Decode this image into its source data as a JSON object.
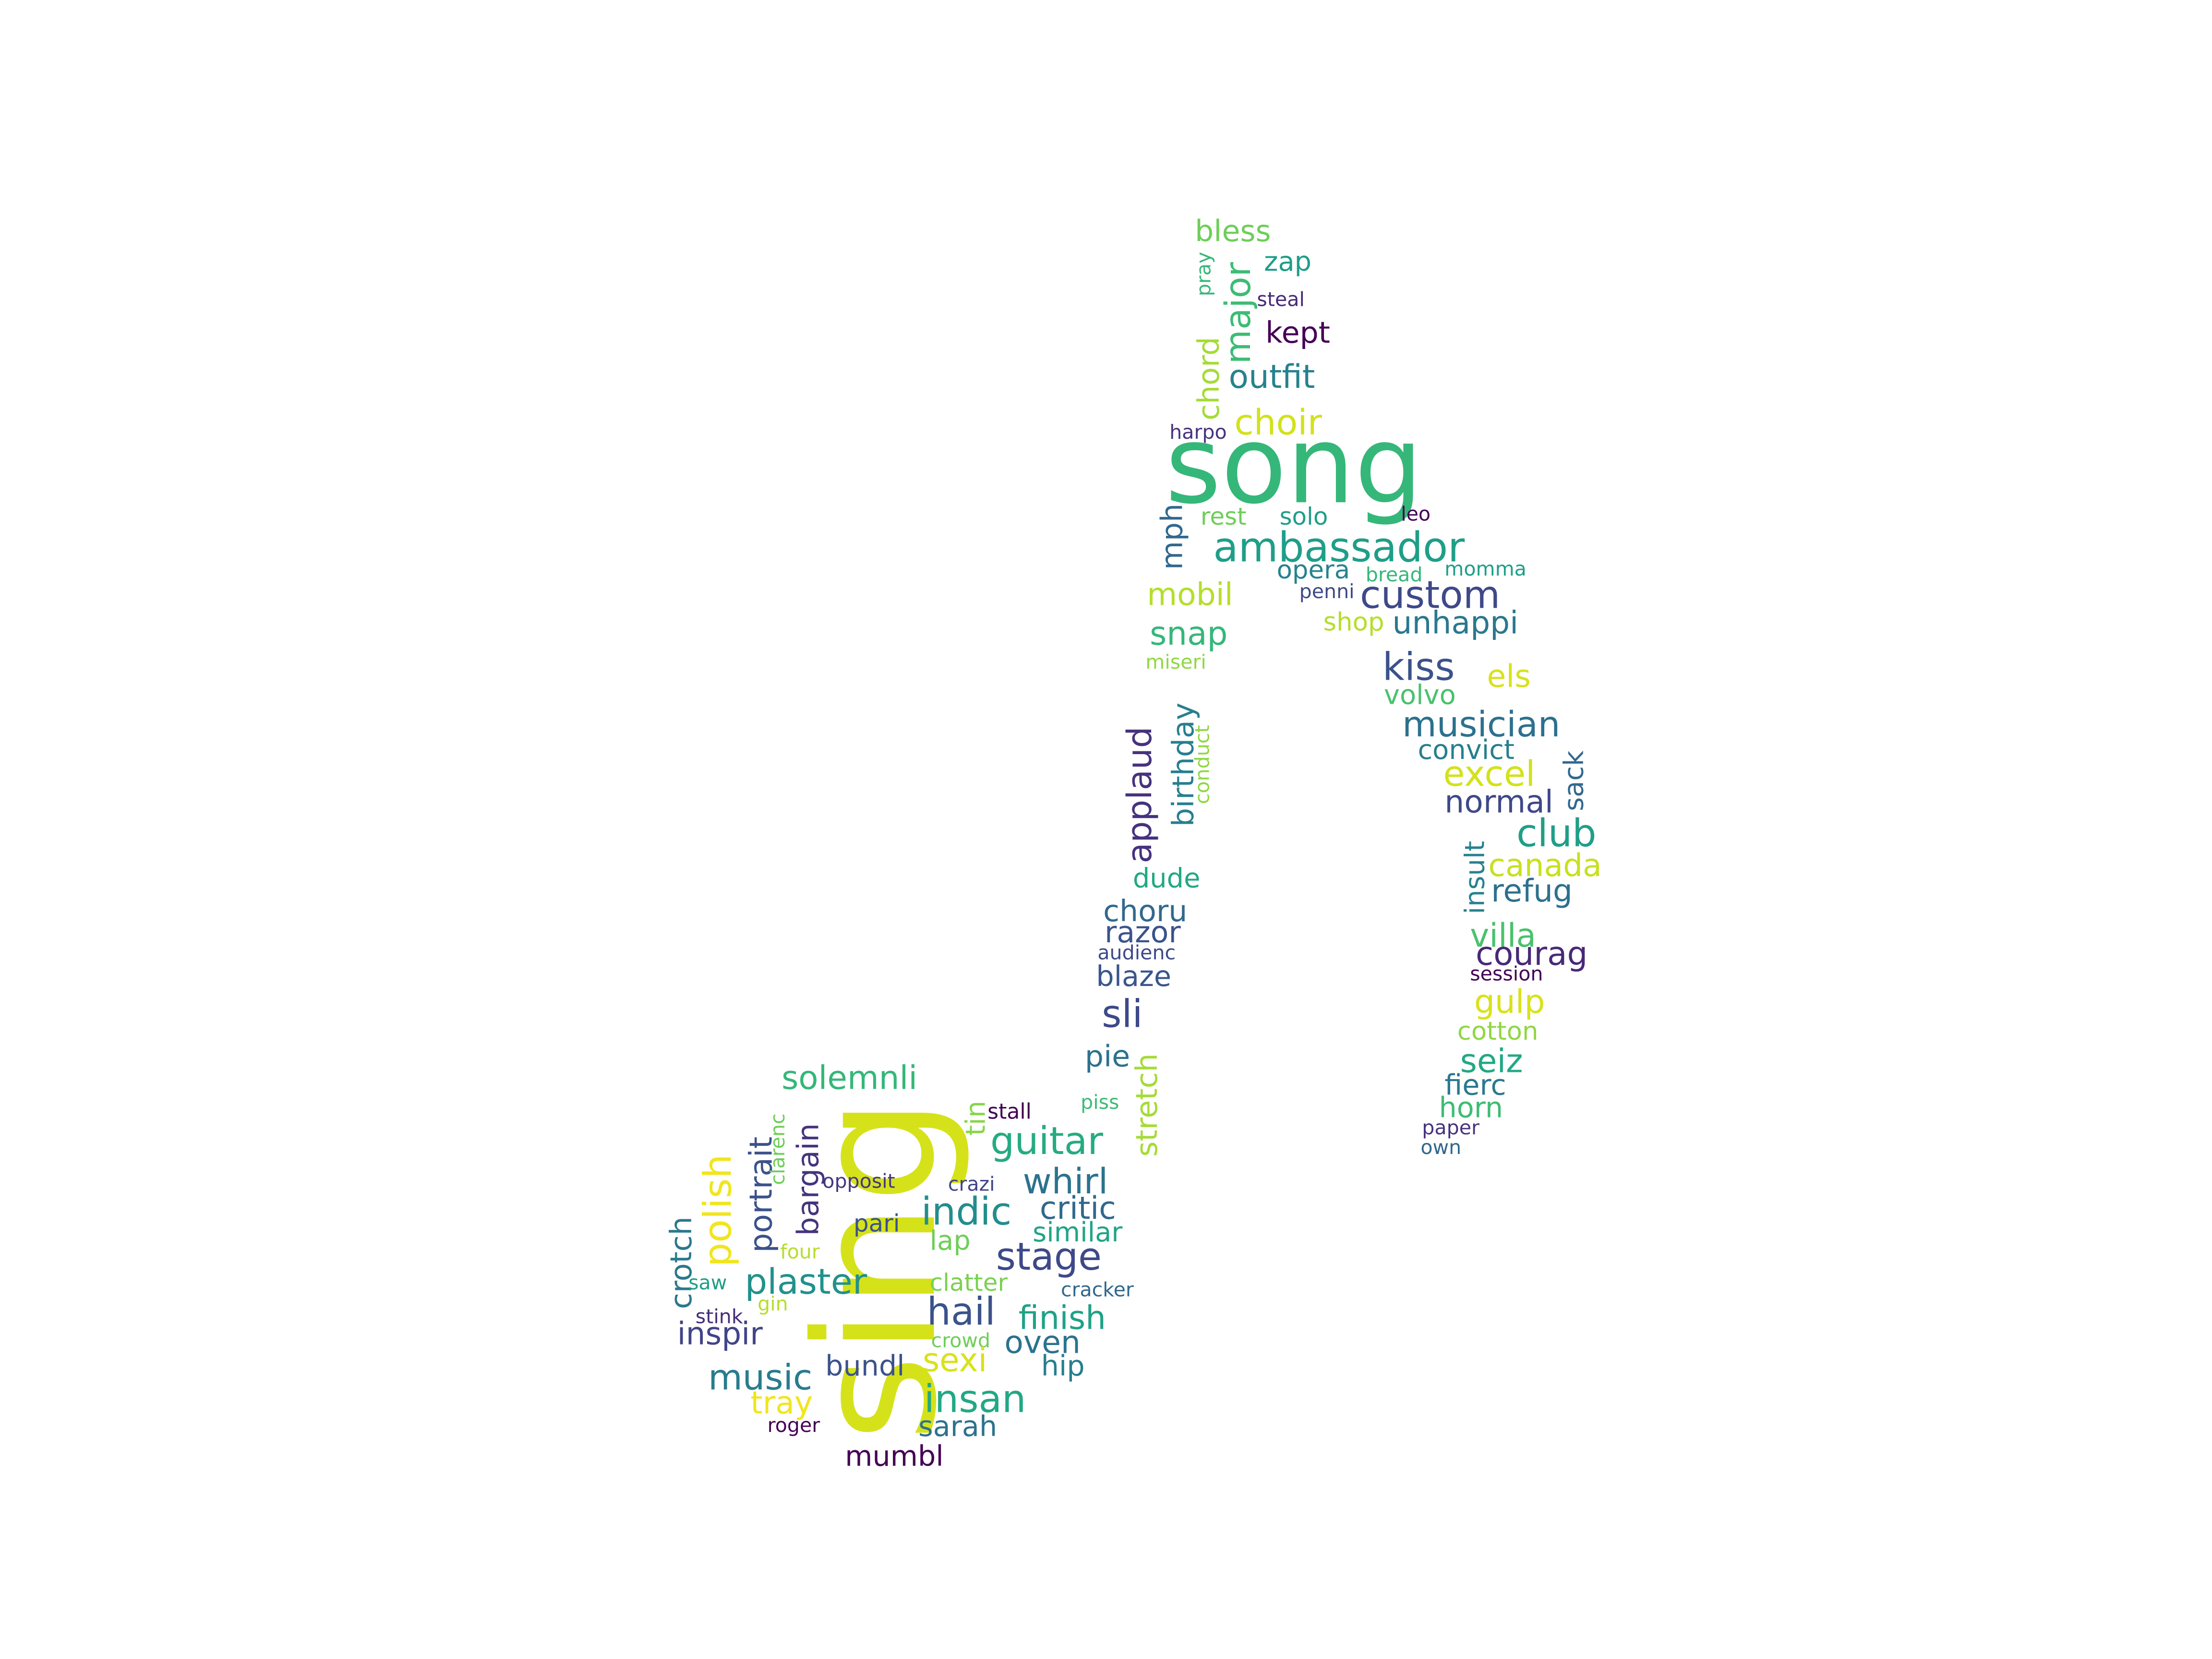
{
  "words": [
    {
      "text": "song",
      "color": "#35b779"
    },
    {
      "text": "sing",
      "color": "#d5e21a"
    },
    {
      "text": "ambassador",
      "color": "#1f9e89"
    },
    {
      "text": "custom",
      "color": "#3e4989"
    },
    {
      "text": "bless",
      "color": "#6ece58"
    },
    {
      "text": "zap",
      "color": "#1f9e89"
    },
    {
      "text": "pray",
      "color": "#35b779"
    },
    {
      "text": "major",
      "color": "#3dbc74"
    },
    {
      "text": "steal",
      "color": "#482878"
    },
    {
      "text": "kept",
      "color": "#440154"
    },
    {
      "text": "chord",
      "color": "#a5db36"
    },
    {
      "text": "outfit",
      "color": "#26828e"
    },
    {
      "text": "choir",
      "color": "#d2e21b"
    },
    {
      "text": "harpo",
      "color": "#46337e"
    },
    {
      "text": "rest",
      "color": "#6ece58"
    },
    {
      "text": "solo",
      "color": "#1f9e89"
    },
    {
      "text": "leo",
      "color": "#440154"
    },
    {
      "text": "mph",
      "color": "#31688e"
    },
    {
      "text": "opera",
      "color": "#26828e"
    },
    {
      "text": "bread",
      "color": "#35b779"
    },
    {
      "text": "momma",
      "color": "#1f9e89"
    },
    {
      "text": "penni",
      "color": "#3e4989"
    },
    {
      "text": "mobil",
      "color": "#b5de2b"
    },
    {
      "text": "snap",
      "color": "#35b779"
    },
    {
      "text": "shop",
      "color": "#b5de2b"
    },
    {
      "text": "unhappi",
      "color": "#2a788e"
    },
    {
      "text": "miseri",
      "color": "#90d743"
    },
    {
      "text": "kiss",
      "color": "#3b528b"
    },
    {
      "text": "els",
      "color": "#d8e219"
    },
    {
      "text": "volvo",
      "color": "#4ac16d"
    },
    {
      "text": "birthday",
      "color": "#277f8e"
    },
    {
      "text": "conduct",
      "color": "#90d743"
    },
    {
      "text": "applaud",
      "color": "#46327e"
    },
    {
      "text": "musician",
      "color": "#2c718e"
    },
    {
      "text": "convict",
      "color": "#277f8e"
    },
    {
      "text": "excel",
      "color": "#d2e21b"
    },
    {
      "text": "sack",
      "color": "#31688e"
    },
    {
      "text": "normal",
      "color": "#3e4989"
    },
    {
      "text": "club",
      "color": "#1f9e89"
    },
    {
      "text": "insult",
      "color": "#26828e"
    },
    {
      "text": "canada",
      "color": "#c8e020"
    },
    {
      "text": "refug",
      "color": "#2d708e"
    },
    {
      "text": "dude",
      "color": "#22a884"
    },
    {
      "text": "choru",
      "color": "#31688e"
    },
    {
      "text": "razor",
      "color": "#3b528b"
    },
    {
      "text": "villa",
      "color": "#4ac16d"
    },
    {
      "text": "audienc",
      "color": "#3e4989"
    },
    {
      "text": "courag",
      "color": "#482878"
    },
    {
      "text": "session",
      "color": "#440154"
    },
    {
      "text": "blaze",
      "color": "#39568c"
    },
    {
      "text": "gulp",
      "color": "#d8e219"
    },
    {
      "text": "sli",
      "color": "#3e4989"
    },
    {
      "text": "cotton",
      "color": "#90d743"
    },
    {
      "text": "pie",
      "color": "#2c728e"
    },
    {
      "text": "seiz",
      "color": "#22a884"
    },
    {
      "text": "fierc",
      "color": "#2a788e"
    },
    {
      "text": "horn",
      "color": "#3dbc74"
    },
    {
      "text": "paper",
      "color": "#46337e"
    },
    {
      "text": "own",
      "color": "#31688e"
    },
    {
      "text": "solemnli",
      "color": "#35b779"
    },
    {
      "text": "tin",
      "color": "#86d549"
    },
    {
      "text": "stall",
      "color": "#440154"
    },
    {
      "text": "piss",
      "color": "#3dbc74"
    },
    {
      "text": "stretch",
      "color": "#a5db36"
    },
    {
      "text": "polish",
      "color": "#f1e51d"
    },
    {
      "text": "portrait",
      "color": "#3b528b"
    },
    {
      "text": "clarenc",
      "color": "#6ece58"
    },
    {
      "text": "bargain",
      "color": "#46337e"
    },
    {
      "text": "guitar",
      "color": "#25ab82"
    },
    {
      "text": "opposit",
      "color": "#453781"
    },
    {
      "text": "crazi",
      "color": "#414487"
    },
    {
      "text": "whirl",
      "color": "#2c728e"
    },
    {
      "text": "crotch",
      "color": "#2a788e"
    },
    {
      "text": "indic",
      "color": "#228d8d"
    },
    {
      "text": "critic",
      "color": "#31688e"
    },
    {
      "text": "pari",
      "color": "#3b528b"
    },
    {
      "text": "lap",
      "color": "#6ece58"
    },
    {
      "text": "similar",
      "color": "#20a486"
    },
    {
      "text": "four",
      "color": "#b5de2b"
    },
    {
      "text": "stage",
      "color": "#3e4989"
    },
    {
      "text": "saw",
      "color": "#1f9e89"
    },
    {
      "text": "plaster",
      "color": "#21918c"
    },
    {
      "text": "clatter",
      "color": "#7ad151"
    },
    {
      "text": "cracker",
      "color": "#31688e"
    },
    {
      "text": "gin",
      "color": "#b5de2b"
    },
    {
      "text": "stink",
      "color": "#472c7a"
    },
    {
      "text": "hail",
      "color": "#3b528b"
    },
    {
      "text": "finish",
      "color": "#1fa187"
    },
    {
      "text": "inspir",
      "color": "#414487"
    },
    {
      "text": "crowd",
      "color": "#6ece58"
    },
    {
      "text": "oven",
      "color": "#2c728e"
    },
    {
      "text": "sexi",
      "color": "#d8e219"
    },
    {
      "text": "hip",
      "color": "#277f8e"
    },
    {
      "text": "music",
      "color": "#287c8e"
    },
    {
      "text": "bundl",
      "color": "#3b528b"
    },
    {
      "text": "tray",
      "color": "#f1e51d"
    },
    {
      "text": "insan",
      "color": "#22a884"
    },
    {
      "text": "roger",
      "color": "#440154"
    },
    {
      "text": "sarah",
      "color": "#2c728e"
    },
    {
      "text": "mumbl",
      "color": "#440154"
    }
  ]
}
